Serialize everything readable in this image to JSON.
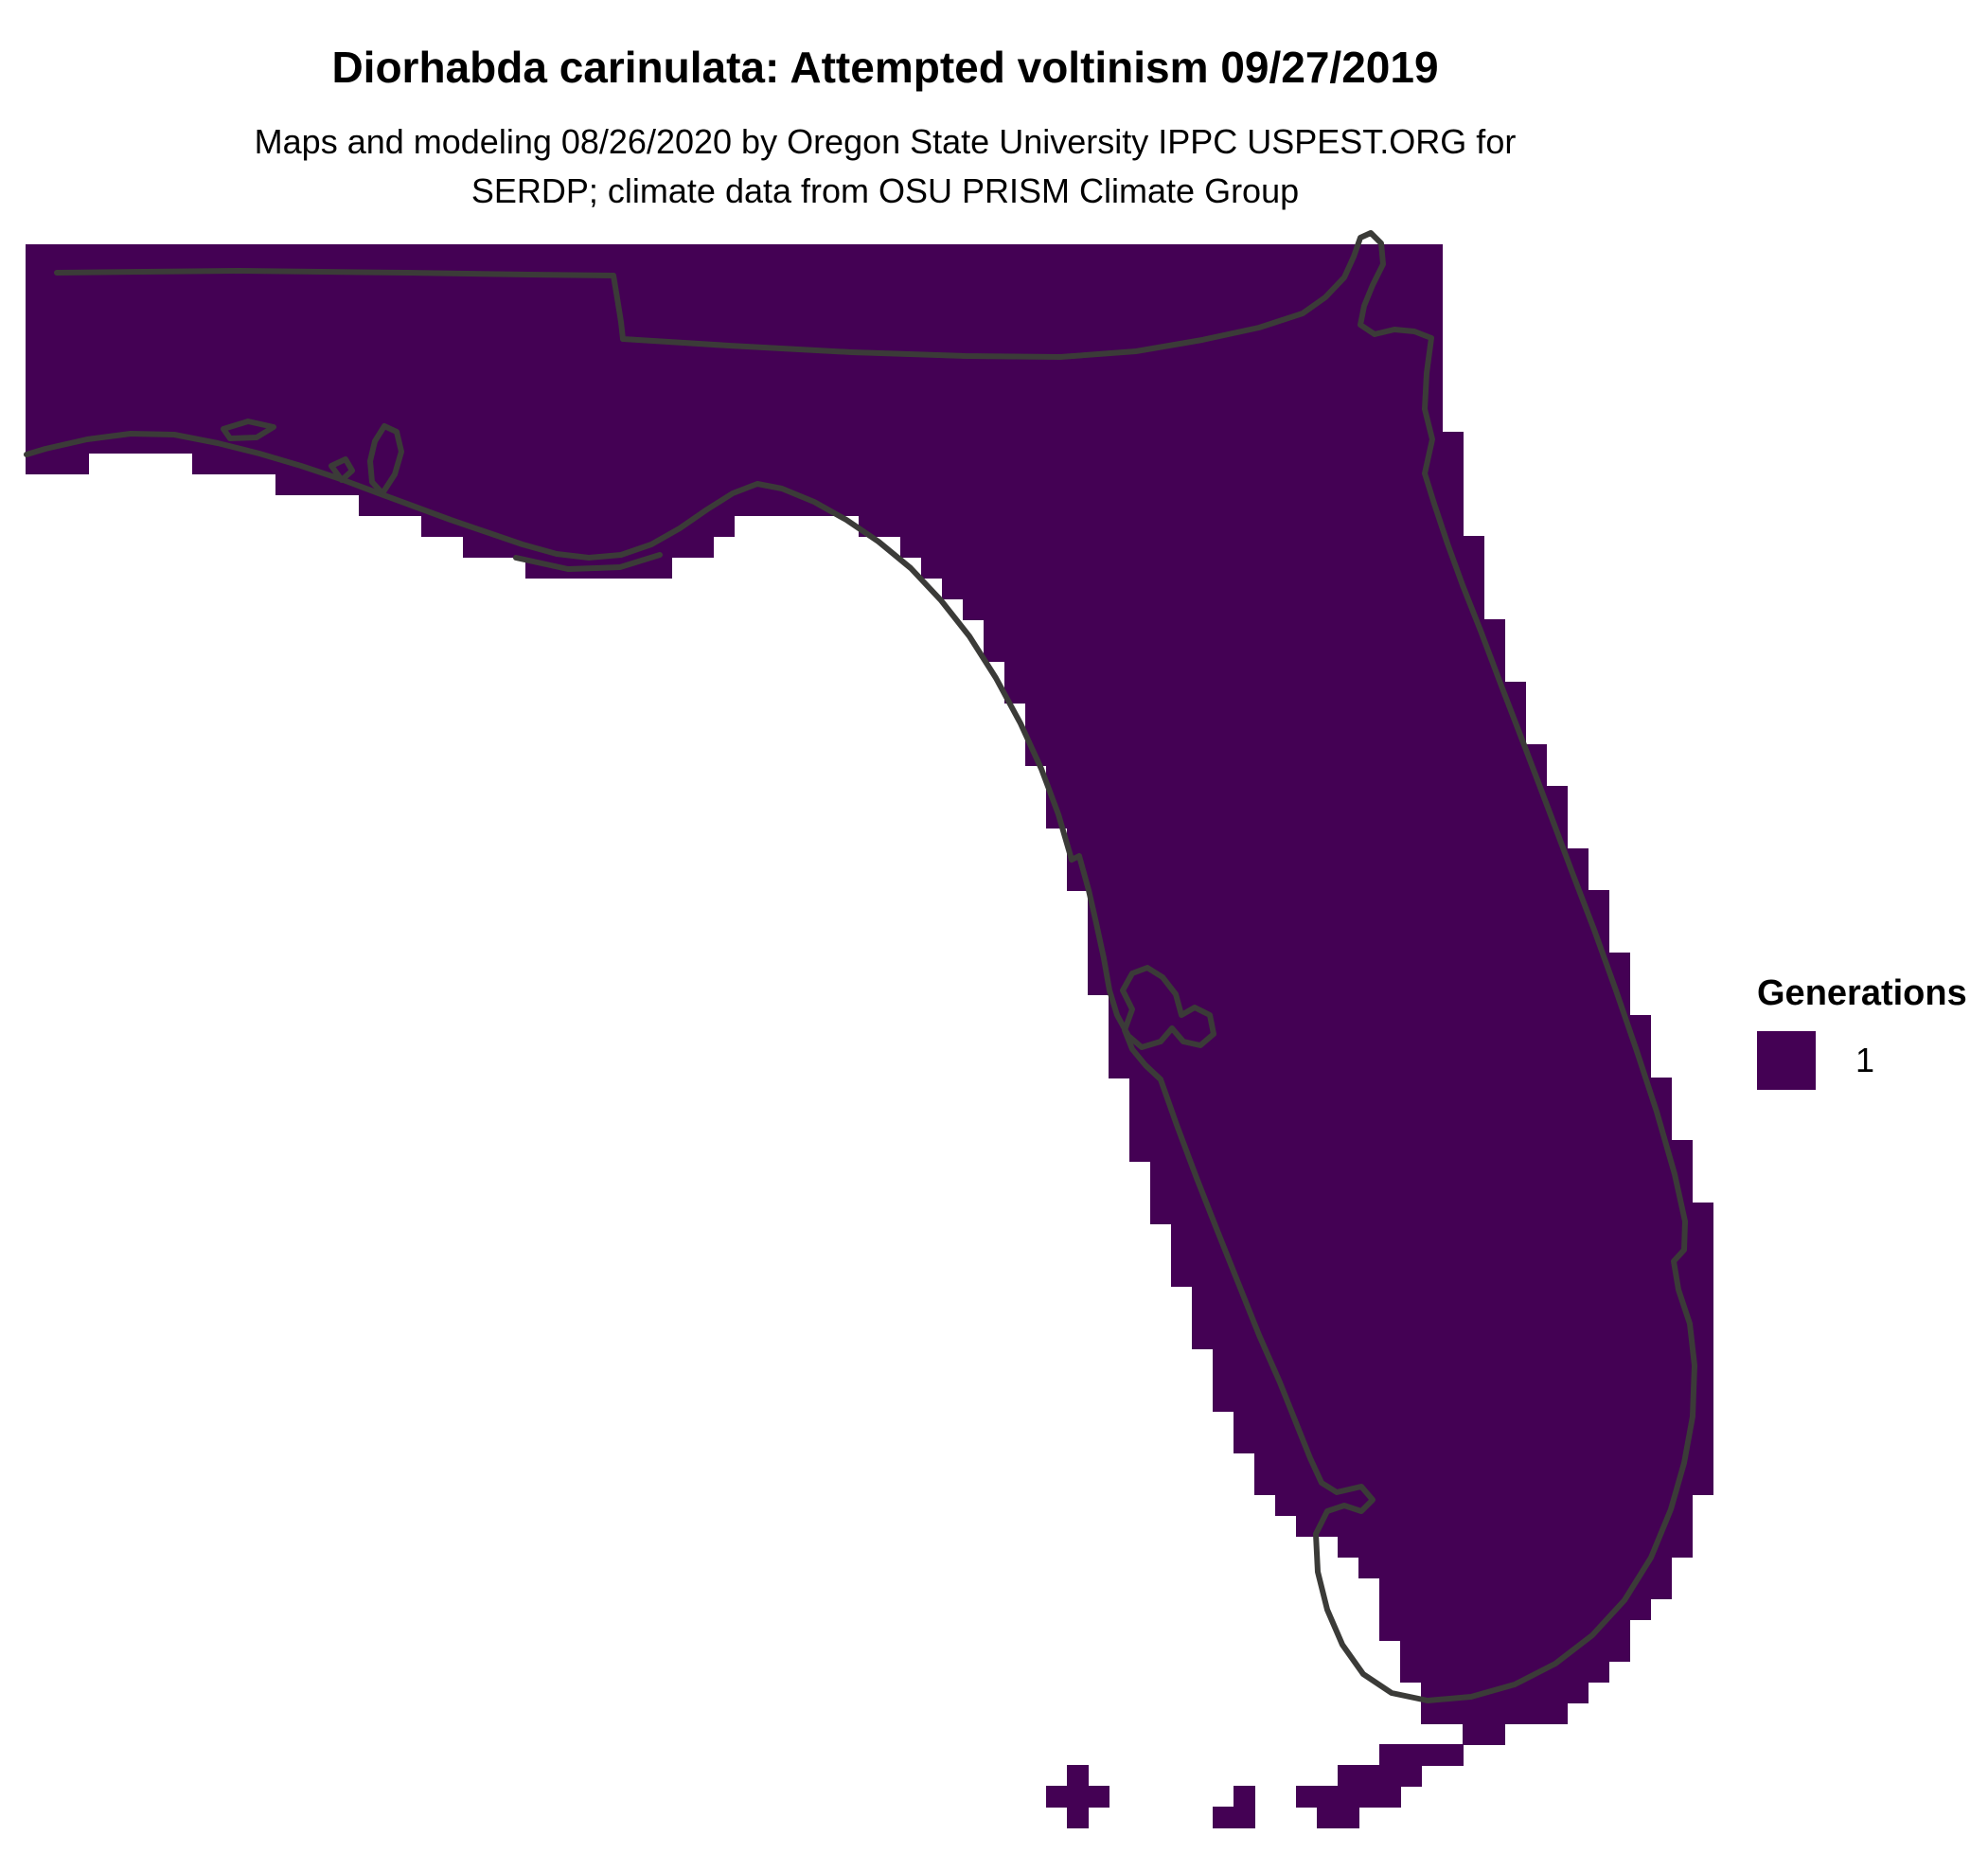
{
  "header": {
    "title": "Diorhabda carinulata: Attempted voltinism 09/27/2019",
    "subtitle_line1": "Maps and modeling 08/26/2020 by Oregon State University IPPC USPEST.ORG for",
    "subtitle_line2": "SERDP; climate data from OSU PRISM Climate Group"
  },
  "legend": {
    "title": "Generations",
    "items": [
      {
        "label": "1",
        "color": "#440154"
      }
    ]
  },
  "map": {
    "region_shown": "Florida",
    "colors": {
      "fill": "#440154",
      "boundary": "#3b3b38",
      "water": "#ffffff"
    },
    "cell_size": 22,
    "fringe": 24,
    "grid_origin": [
      27,
      258
    ],
    "grid_cols": 82,
    "grid_rows": 77,
    "outline": [
      [
        27,
        258
      ],
      [
        1490,
        258
      ],
      [
        1502,
        330
      ],
      [
        1506,
        420
      ],
      [
        1516,
        500
      ],
      [
        1530,
        570
      ],
      [
        1548,
        632
      ],
      [
        1572,
        702
      ],
      [
        1598,
        780
      ],
      [
        1625,
        855
      ],
      [
        1652,
        925
      ],
      [
        1678,
        990
      ],
      [
        1702,
        1055
      ],
      [
        1726,
        1120
      ],
      [
        1748,
        1185
      ],
      [
        1768,
        1252
      ],
      [
        1780,
        1310
      ],
      [
        1789,
        1375
      ],
      [
        1791,
        1445
      ],
      [
        1786,
        1515
      ],
      [
        1774,
        1580
      ],
      [
        1753,
        1640
      ],
      [
        1725,
        1690
      ],
      [
        1692,
        1730
      ],
      [
        1655,
        1764
      ],
      [
        1612,
        1789
      ],
      [
        1568,
        1800
      ],
      [
        1528,
        1795
      ],
      [
        1508,
        1770
      ],
      [
        1495,
        1725
      ],
      [
        1476,
        1675
      ],
      [
        1448,
        1627
      ],
      [
        1416,
        1598
      ],
      [
        1380,
        1588
      ],
      [
        1352,
        1558
      ],
      [
        1330,
        1515
      ],
      [
        1299,
        1436
      ],
      [
        1271,
        1350
      ],
      [
        1244,
        1268
      ],
      [
        1217,
        1184
      ],
      [
        1194,
        1098
      ],
      [
        1176,
        1018
      ],
      [
        1162,
        946
      ],
      [
        1148,
        888
      ],
      [
        1127,
        816
      ],
      [
        1099,
        744
      ],
      [
        1068,
        676
      ],
      [
        1029,
        620
      ],
      [
        986,
        576
      ],
      [
        940,
        543
      ],
      [
        893,
        519
      ],
      [
        846,
        507
      ],
      [
        798,
        517
      ],
      [
        753,
        544
      ],
      [
        710,
        571
      ],
      [
        666,
        589
      ],
      [
        620,
        591
      ],
      [
        573,
        579
      ],
      [
        523,
        561
      ],
      [
        470,
        542
      ],
      [
        413,
        521
      ],
      [
        353,
        501
      ],
      [
        293,
        485
      ],
      [
        233,
        469
      ],
      [
        170,
        457
      ],
      [
        106,
        461
      ],
      [
        48,
        473
      ],
      [
        27,
        480
      ]
    ],
    "keys_cells": [
      [
        75,
        67
      ],
      [
        74,
        68
      ],
      [
        73,
        69
      ],
      [
        74,
        69
      ],
      [
        72,
        70
      ],
      [
        73,
        70
      ],
      [
        71,
        70
      ],
      [
        70,
        71
      ],
      [
        69,
        71
      ],
      [
        68,
        72
      ],
      [
        67,
        72
      ],
      [
        66,
        72
      ],
      [
        65,
        72
      ],
      [
        64,
        73
      ],
      [
        65,
        73
      ],
      [
        66,
        73
      ],
      [
        63,
        73
      ],
      [
        61,
        74
      ],
      [
        62,
        74
      ],
      [
        63,
        74
      ],
      [
        64,
        74
      ],
      [
        65,
        74
      ],
      [
        62,
        75
      ],
      [
        63,
        75
      ],
      [
        57,
        75
      ],
      [
        58,
        75
      ],
      [
        58,
        74
      ],
      [
        50,
        73
      ],
      [
        49,
        74
      ],
      [
        50,
        74
      ],
      [
        51,
        74
      ],
      [
        50,
        75
      ]
    ],
    "boundary_paths": [
      "M60 288 L250 286 L430 288 L560 290 L648 291 L652 315 L656 340 L658 358 L770 365 L900 372 L1020 376 L1120 377 L1200 371 L1270 359 L1330 346 L1376 331 L1400 314 L1420 293 L1430 271 L1437 251 L1448 246 L1459 257 L1461 279 L1450 301 L1441 323 L1437 343 L1452 353 L1473 348 L1494 350 L1512 357 L1507 394 L1505 432 L1513 464 L1505 500 L1515 532 L1529 574 L1545 618 L1564 666 L1587 727 L1612 792 L1637 858 L1661 922 L1684 982 L1707 1046 L1729 1110 L1750 1174 L1769 1240 L1780 1290 L1779 1320 L1768 1332 L1773 1362 L1785 1398 L1790 1442 L1788 1496 L1779 1545 L1765 1594 L1744 1645 L1716 1690 L1682 1727 L1643 1757 L1600 1779 L1554 1792 L1508 1796 L1470 1788 L1440 1768 L1418 1737 L1402 1700 L1392 1660 L1390 1620 L1402 1596 L1420 1590 L1438 1596 L1450 1584 L1438 1570 L1412 1576 L1396 1566 L1384 1540 L1368 1500 L1352 1460 L1330 1410 L1308 1355 L1286 1300 L1264 1244 L1243 1188 L1226 1140 L1210 1125 L1196 1108 L1188 1088 L1196 1066 L1186 1046 L1196 1028 L1212 1022 L1228 1032 L1242 1050 L1248 1072 L1262 1064 L1278 1072 L1282 1092 L1268 1104 L1250 1100 L1238 1086 L1226 1100 L1206 1106 L1192 1094 L1180 1072 L1172 1046 L1166 1012 L1158 975 L1150 940 L1140 904 L1132 908 L1118 860 L1100 812 L1078 764 L1052 716 L1024 672 L994 634 L962 600 L928 572 L894 549 L860 530 L826 516 L800 511 L774 521 L747 538 L718 558 L688 575 L656 586 L622 589 L588 585 L552 575 L514 562 L476 549 L438 535 L400 521 L360 506 L318 492 L274 479 L230 468 L184 459 L138 458 L92 464 L48 474 L28 480",
      "M396 466 L406 450 L419 456 L424 477 L417 501 L404 521 L393 509 L391 487 Z",
      "M350 492 L365 485 L372 497 L361 507 Z",
      "M236 453 L262 445 L289 451 L271 462 L243 463 Z",
      "M545 589 L600 601 L655 599 L697 586"
    ]
  }
}
